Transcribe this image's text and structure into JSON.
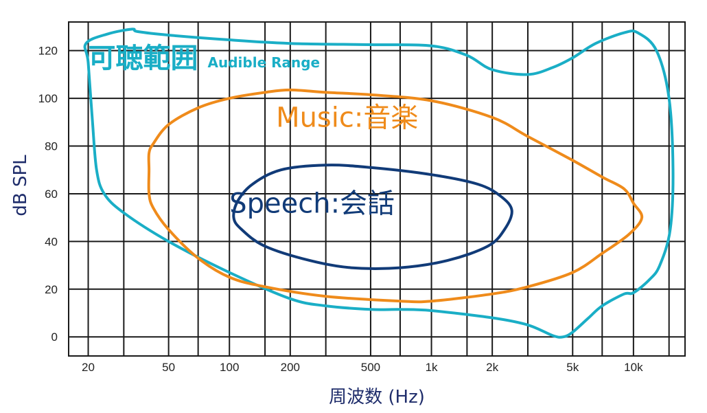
{
  "chart_data": {
    "type": "area",
    "xlabel": "周波数 (Hz)",
    "ylabel": "dB SPL",
    "x_scale": "log",
    "xlim": [
      16,
      18000
    ],
    "ylim": [
      -8,
      132
    ],
    "grid": true,
    "x_ticks": [
      {
        "value": 20,
        "label": "20"
      },
      {
        "value": 50,
        "label": "50"
      },
      {
        "value": 100,
        "label": "100"
      },
      {
        "value": 200,
        "label": "200"
      },
      {
        "value": 500,
        "label": "500"
      },
      {
        "value": 1000,
        "label": "1k"
      },
      {
        "value": 2000,
        "label": "2k"
      },
      {
        "value": 5000,
        "label": "5k"
      },
      {
        "value": 10000,
        "label": "10k"
      }
    ],
    "x_gridlines": [
      20,
      30,
      50,
      70,
      100,
      150,
      200,
      300,
      500,
      700,
      1000,
      1500,
      2000,
      3000,
      5000,
      7000,
      10000,
      15000
    ],
    "y_ticks": [
      0,
      20,
      40,
      60,
      80,
      100,
      120
    ],
    "series": [
      {
        "name": "Audible Range",
        "label_main": "可聴範囲",
        "label_sub": "Audible Range",
        "label_pos": {
          "x": 20,
          "y": 113
        },
        "color": "#1aaec6",
        "points": [
          [
            19.5,
            123
          ],
          [
            25,
            127
          ],
          [
            33,
            129
          ],
          [
            35,
            128
          ],
          [
            50,
            126.5
          ],
          [
            100,
            124.5
          ],
          [
            200,
            123
          ],
          [
            500,
            122.5
          ],
          [
            1000,
            122
          ],
          [
            1500,
            118
          ],
          [
            2000,
            112
          ],
          [
            3000,
            110
          ],
          [
            4000,
            113
          ],
          [
            5000,
            117
          ],
          [
            6500,
            123
          ],
          [
            9000,
            127.5
          ],
          [
            10500,
            127.5
          ],
          [
            13000,
            120
          ],
          [
            15000,
            100
          ],
          [
            15700,
            70
          ],
          [
            15200,
            45
          ],
          [
            13500,
            30
          ],
          [
            12000,
            24
          ],
          [
            10000,
            18.5
          ],
          [
            9000,
            18
          ],
          [
            7000,
            13
          ],
          [
            6000,
            8
          ],
          [
            5000,
            2
          ],
          [
            4500,
            0
          ],
          [
            4000,
            0.5
          ],
          [
            3000,
            5
          ],
          [
            2000,
            8
          ],
          [
            1000,
            11
          ],
          [
            700,
            11.5
          ],
          [
            500,
            11.5
          ],
          [
            300,
            13
          ],
          [
            200,
            16
          ],
          [
            100,
            27
          ],
          [
            50,
            40
          ],
          [
            30,
            52
          ],
          [
            24,
            60
          ],
          [
            22,
            70
          ],
          [
            21,
            90
          ],
          [
            20,
            115
          ],
          [
            19.5,
            123
          ]
        ]
      },
      {
        "name": "Music",
        "label_main": "Music:音楽",
        "label_sub": "",
        "label_pos": {
          "x": 170,
          "y": 88
        },
        "color": "#ef8b1b",
        "points": [
          [
            200,
            103.5
          ],
          [
            300,
            102.5
          ],
          [
            500,
            101.5
          ],
          [
            1000,
            99
          ],
          [
            2000,
            92
          ],
          [
            3000,
            84
          ],
          [
            5000,
            74
          ],
          [
            7000,
            67
          ],
          [
            9000,
            62
          ],
          [
            10000,
            56
          ],
          [
            11000,
            50
          ],
          [
            9500,
            43
          ],
          [
            7000,
            35
          ],
          [
            5000,
            27
          ],
          [
            3000,
            21
          ],
          [
            2000,
            18
          ],
          [
            1000,
            15
          ],
          [
            700,
            15
          ],
          [
            300,
            17
          ],
          [
            150,
            21
          ],
          [
            100,
            25
          ],
          [
            70,
            33
          ],
          [
            50,
            45
          ],
          [
            42,
            54
          ],
          [
            40,
            60
          ],
          [
            40,
            70
          ],
          [
            40,
            77
          ],
          [
            42,
            81
          ],
          [
            50,
            89
          ],
          [
            70,
            96
          ],
          [
            100,
            100
          ],
          [
            150,
            102.5
          ],
          [
            200,
            103.5
          ]
        ]
      },
      {
        "name": "Speech",
        "label_main": "Speech:会話",
        "label_sub": "",
        "label_pos": {
          "x": 100,
          "y": 52
        },
        "color": "#113b78",
        "points": [
          [
            300,
            72
          ],
          [
            500,
            71
          ],
          [
            1000,
            68
          ],
          [
            1700,
            64
          ],
          [
            2200,
            59
          ],
          [
            2500,
            53
          ],
          [
            2300,
            45
          ],
          [
            1900,
            38
          ],
          [
            1200,
            32
          ],
          [
            700,
            29
          ],
          [
            400,
            29
          ],
          [
            250,
            32
          ],
          [
            150,
            38
          ],
          [
            115,
            45
          ],
          [
            105,
            50
          ],
          [
            110,
            57
          ],
          [
            130,
            64
          ],
          [
            180,
            70
          ],
          [
            300,
            72
          ]
        ]
      }
    ]
  }
}
